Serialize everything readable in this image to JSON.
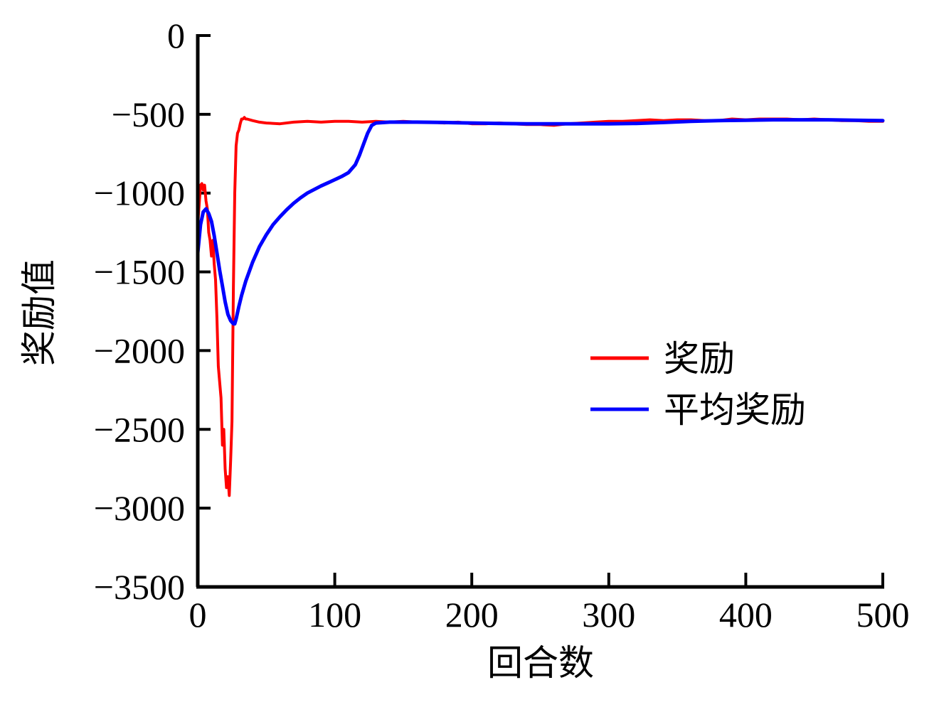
{
  "chart_data": {
    "type": "line",
    "title": "",
    "xlabel": "回合数",
    "ylabel": "奖励值",
    "xlim": [
      0,
      500
    ],
    "ylim": [
      -3500,
      0
    ],
    "xticks": [
      0,
      100,
      200,
      300,
      400,
      500
    ],
    "yticks": [
      0,
      -500,
      -1000,
      -1500,
      -2000,
      -2500,
      -3000,
      -3500
    ],
    "xtick_labels": [
      "0",
      "100",
      "200",
      "300",
      "400",
      "500"
    ],
    "ytick_labels": [
      "0",
      "−500",
      "−1000",
      "−1500",
      "−2000",
      "−2500",
      "−3000",
      "−3500"
    ],
    "grid": false,
    "legend_position": "center-right",
    "series": [
      {
        "name": "奖励",
        "color": "#ff0000",
        "x": [
          0,
          2,
          3,
          4,
          5,
          6,
          7,
          8,
          9,
          10,
          11,
          12,
          13,
          14,
          15,
          16,
          17,
          18,
          19,
          20,
          21,
          22,
          23,
          24,
          25,
          26,
          27,
          28,
          29,
          30,
          31,
          32,
          33,
          34,
          35,
          36,
          40,
          45,
          50,
          60,
          70,
          80,
          90,
          100,
          110,
          120,
          130,
          140,
          150,
          160,
          170,
          180,
          190,
          200,
          210,
          220,
          230,
          240,
          250,
          260,
          270,
          280,
          290,
          300,
          310,
          320,
          330,
          340,
          350,
          360,
          370,
          380,
          390,
          400,
          410,
          420,
          430,
          440,
          450,
          460,
          470,
          480,
          490,
          500
        ],
        "y": [
          -1200,
          -950,
          -940,
          -980,
          -950,
          -1050,
          -1100,
          -1250,
          -1300,
          -1400,
          -1300,
          -1450,
          -1550,
          -1800,
          -2100,
          -2200,
          -2300,
          -2600,
          -2500,
          -2750,
          -2870,
          -2800,
          -2920,
          -2700,
          -2450,
          -1600,
          -1000,
          -700,
          -620,
          -600,
          -560,
          -530,
          -530,
          -520,
          -530,
          -530,
          -540,
          -550,
          -555,
          -560,
          -550,
          -545,
          -550,
          -545,
          -545,
          -550,
          -545,
          -550,
          -545,
          -550,
          -550,
          -555,
          -550,
          -560,
          -560,
          -555,
          -560,
          -565,
          -565,
          -570,
          -560,
          -555,
          -550,
          -545,
          -545,
          -540,
          -535,
          -540,
          -535,
          -535,
          -540,
          -540,
          -530,
          -535,
          -530,
          -530,
          -530,
          -535,
          -530,
          -535,
          -540,
          -540,
          -545,
          -545
        ]
      },
      {
        "name": "平均奖励",
        "color": "#0000ff",
        "x": [
          0,
          2,
          4,
          6,
          8,
          10,
          12,
          14,
          16,
          18,
          20,
          22,
          24,
          26,
          27,
          28,
          30,
          32,
          35,
          40,
          45,
          50,
          55,
          60,
          65,
          70,
          75,
          80,
          90,
          95,
          100,
          105,
          110,
          115,
          118,
          121,
          124,
          127,
          130,
          140,
          160,
          180,
          200,
          220,
          240,
          260,
          280,
          300,
          320,
          340,
          360,
          380,
          400,
          420,
          440,
          460,
          480,
          500
        ],
        "y": [
          -1380,
          -1200,
          -1120,
          -1100,
          -1130,
          -1180,
          -1270,
          -1380,
          -1490,
          -1590,
          -1690,
          -1770,
          -1810,
          -1830,
          -1830,
          -1800,
          -1720,
          -1650,
          -1560,
          -1440,
          -1340,
          -1265,
          -1200,
          -1150,
          -1105,
          -1065,
          -1030,
          -1000,
          -955,
          -935,
          -915,
          -895,
          -870,
          -820,
          -760,
          -690,
          -620,
          -570,
          -555,
          -550,
          -550,
          -552,
          -555,
          -558,
          -560,
          -560,
          -560,
          -560,
          -558,
          -552,
          -545,
          -540,
          -538,
          -535,
          -535,
          -535,
          -538,
          -540
        ]
      }
    ]
  }
}
